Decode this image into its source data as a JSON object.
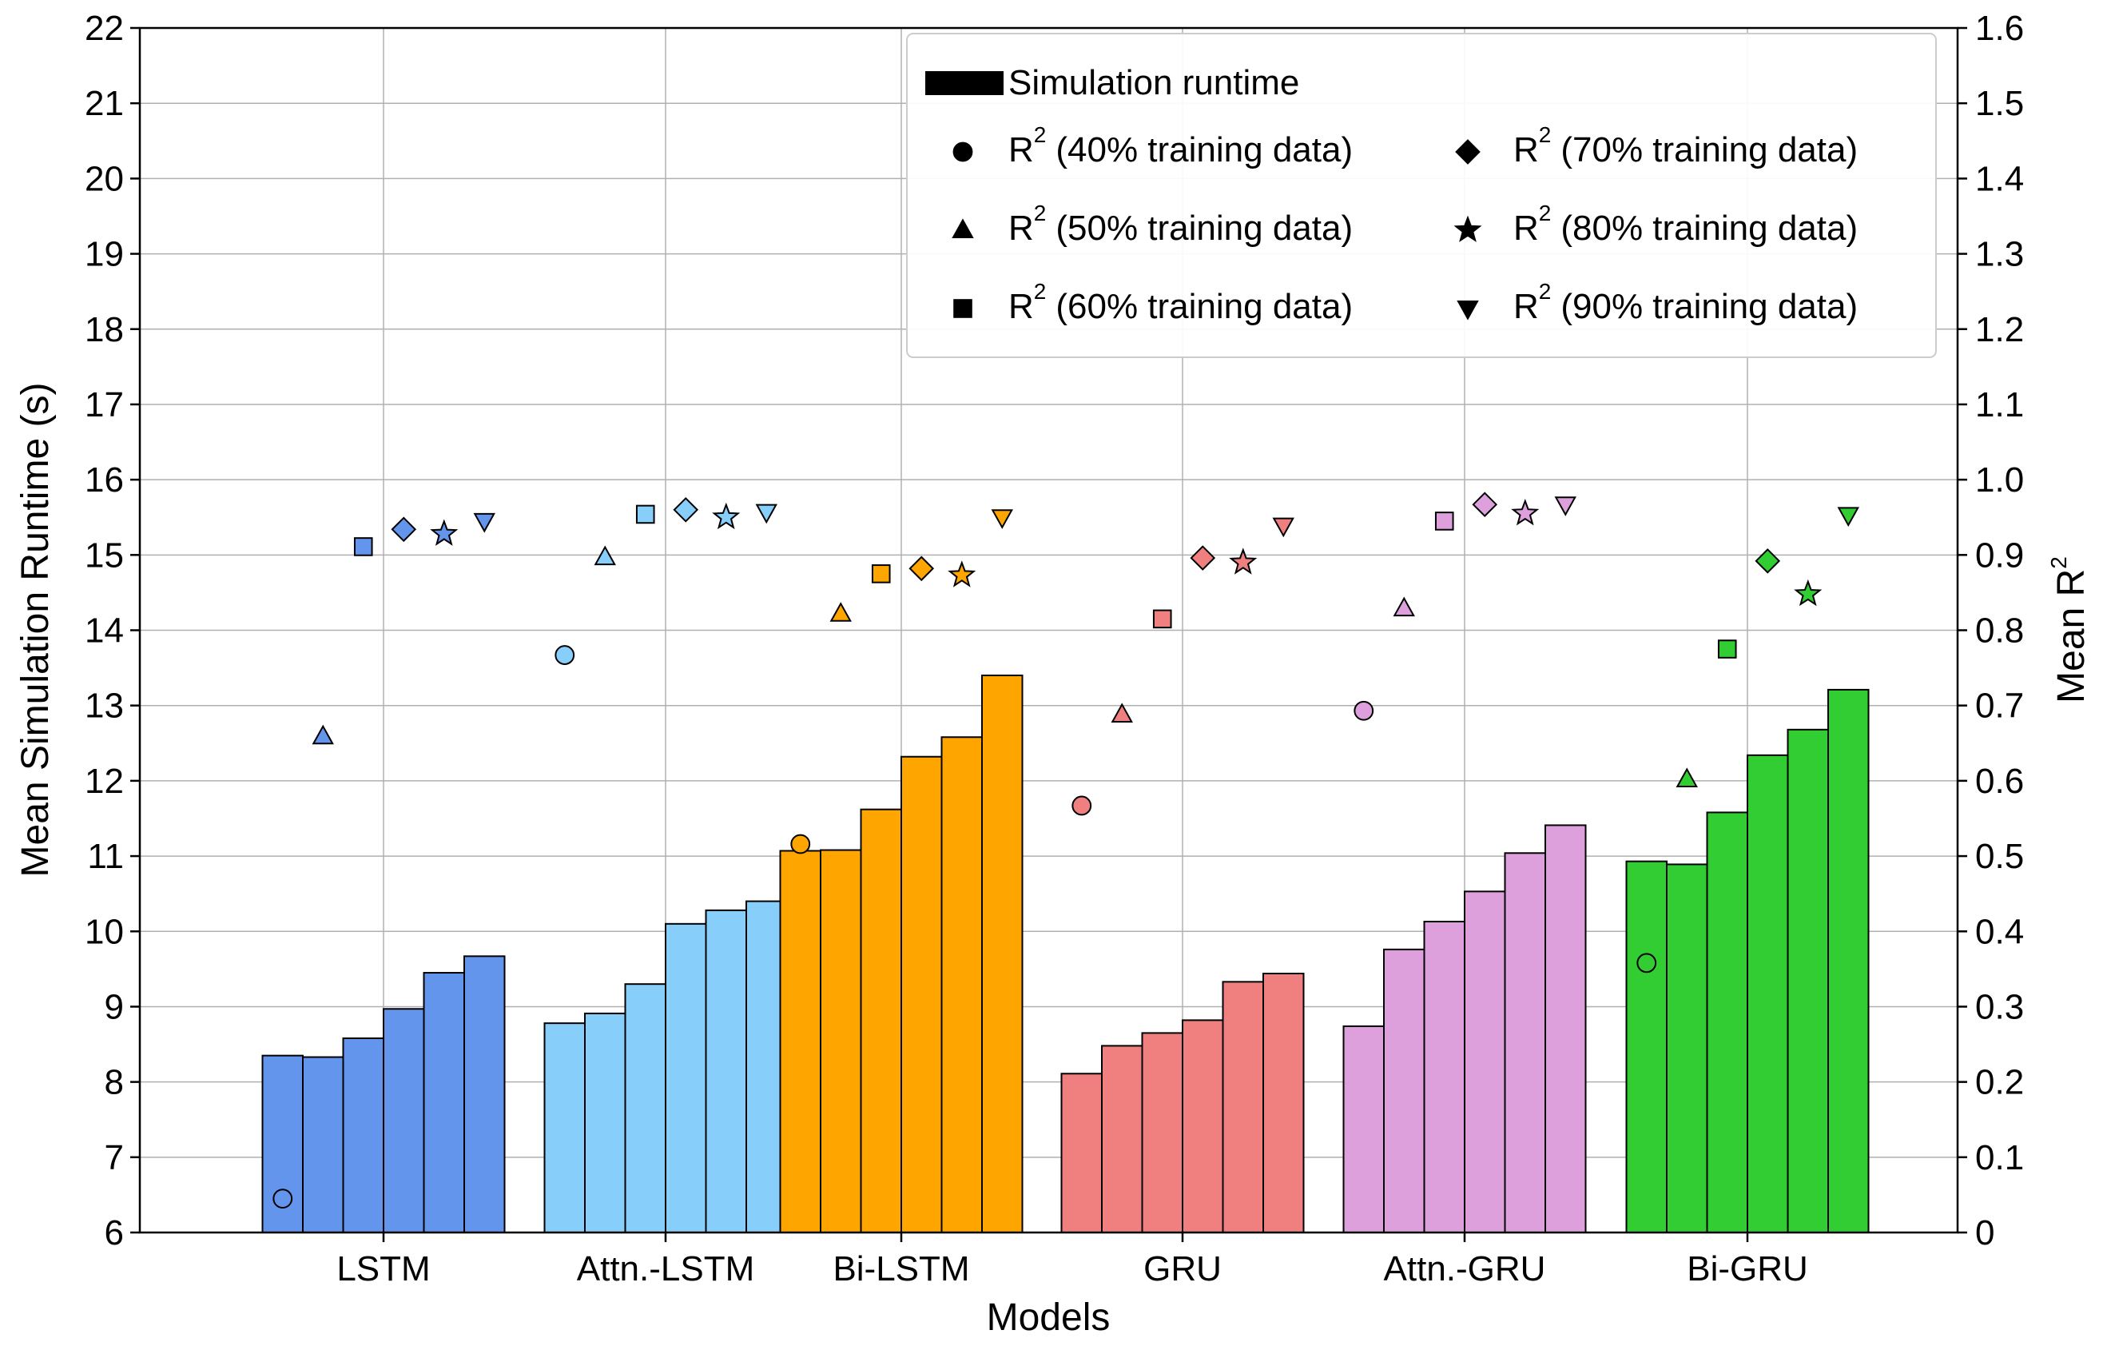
{
  "chart_data": {
    "type": "bar",
    "title": "",
    "xlabel": "Models",
    "ylabel": "Mean Simulation Runtime  (s)",
    "y2label": "Mean R",
    "y2label_sup": "2",
    "ylim": [
      6,
      22
    ],
    "y2lim": [
      0,
      1.6
    ],
    "grid": true,
    "legend_position": "top-right",
    "categories": [
      "LSTM",
      "Attn.-LSTM",
      "Bi-LSTM",
      "GRU",
      "Attn.-GRU",
      "Bi-GRU"
    ],
    "colors": [
      "#6495ED",
      "#87CEFA",
      "#FFA500",
      "#F08080",
      "#DDA0DD",
      "#32CD32"
    ],
    "training_fractions": [
      "40%",
      "50%",
      "60%",
      "70%",
      "80%",
      "90%"
    ],
    "markers": [
      "circle",
      "triangle-up",
      "square",
      "diamond",
      "star",
      "triangle-down"
    ],
    "runtime_series": {
      "name": "Simulation runtime",
      "values": [
        [
          8.35,
          8.33,
          8.58,
          8.97,
          9.45,
          9.67
        ],
        [
          8.78,
          8.91,
          9.3,
          10.1,
          10.28,
          10.4
        ],
        [
          11.07,
          11.08,
          11.62,
          12.32,
          12.58,
          13.4
        ],
        [
          8.11,
          8.48,
          8.65,
          8.82,
          9.33,
          9.44
        ],
        [
          8.74,
          9.76,
          10.13,
          10.53,
          11.04,
          11.41
        ],
        [
          10.93,
          10.89,
          11.58,
          12.34,
          12.68,
          13.21
        ]
      ]
    },
    "r2_series": [
      {
        "name": "R2 (40% training data)",
        "values": [
          0.045,
          0.767,
          0.516,
          0.567,
          0.693,
          0.358
        ]
      },
      {
        "name": "R2 (50% training data)",
        "values": [
          0.659,
          0.897,
          0.822,
          0.688,
          0.829,
          0.602
        ]
      },
      {
        "name": "R2 (60% training data)",
        "values": [
          0.911,
          0.954,
          0.875,
          0.815,
          0.945,
          0.775
        ]
      },
      {
        "name": "R2 (70% training data)",
        "values": [
          0.934,
          0.96,
          0.882,
          0.896,
          0.967,
          0.892
        ]
      },
      {
        "name": "R2 (80% training data)",
        "values": [
          0.928,
          0.95,
          0.873,
          0.89,
          0.955,
          0.848
        ]
      },
      {
        "name": "R2 (90% training data)",
        "values": [
          0.945,
          0.957,
          0.95,
          0.939,
          0.967,
          0.953
        ]
      }
    ],
    "yticks": [
      "6",
      "7",
      "8",
      "9",
      "10",
      "11",
      "12",
      "13",
      "14",
      "15",
      "16",
      "17",
      "18",
      "19",
      "20",
      "21",
      "22"
    ],
    "y2ticks": [
      "0",
      "0.1",
      "0.2",
      "0.3",
      "0.4",
      "0.5",
      "0.6",
      "0.7",
      "0.8",
      "0.9",
      "1.0",
      "1.1",
      "1.2",
      "1.3",
      "1.4",
      "1.5",
      "1.6"
    ],
    "legend": {
      "runtime_label": "Simulation runtime",
      "r2_prefix": "R",
      "r2_sup": "2",
      "entries": [
        "(40% training data)",
        "(50% training data)",
        "(60% training data)",
        "(70% training data)",
        "(80% training data)",
        "(90% training data)"
      ]
    }
  }
}
